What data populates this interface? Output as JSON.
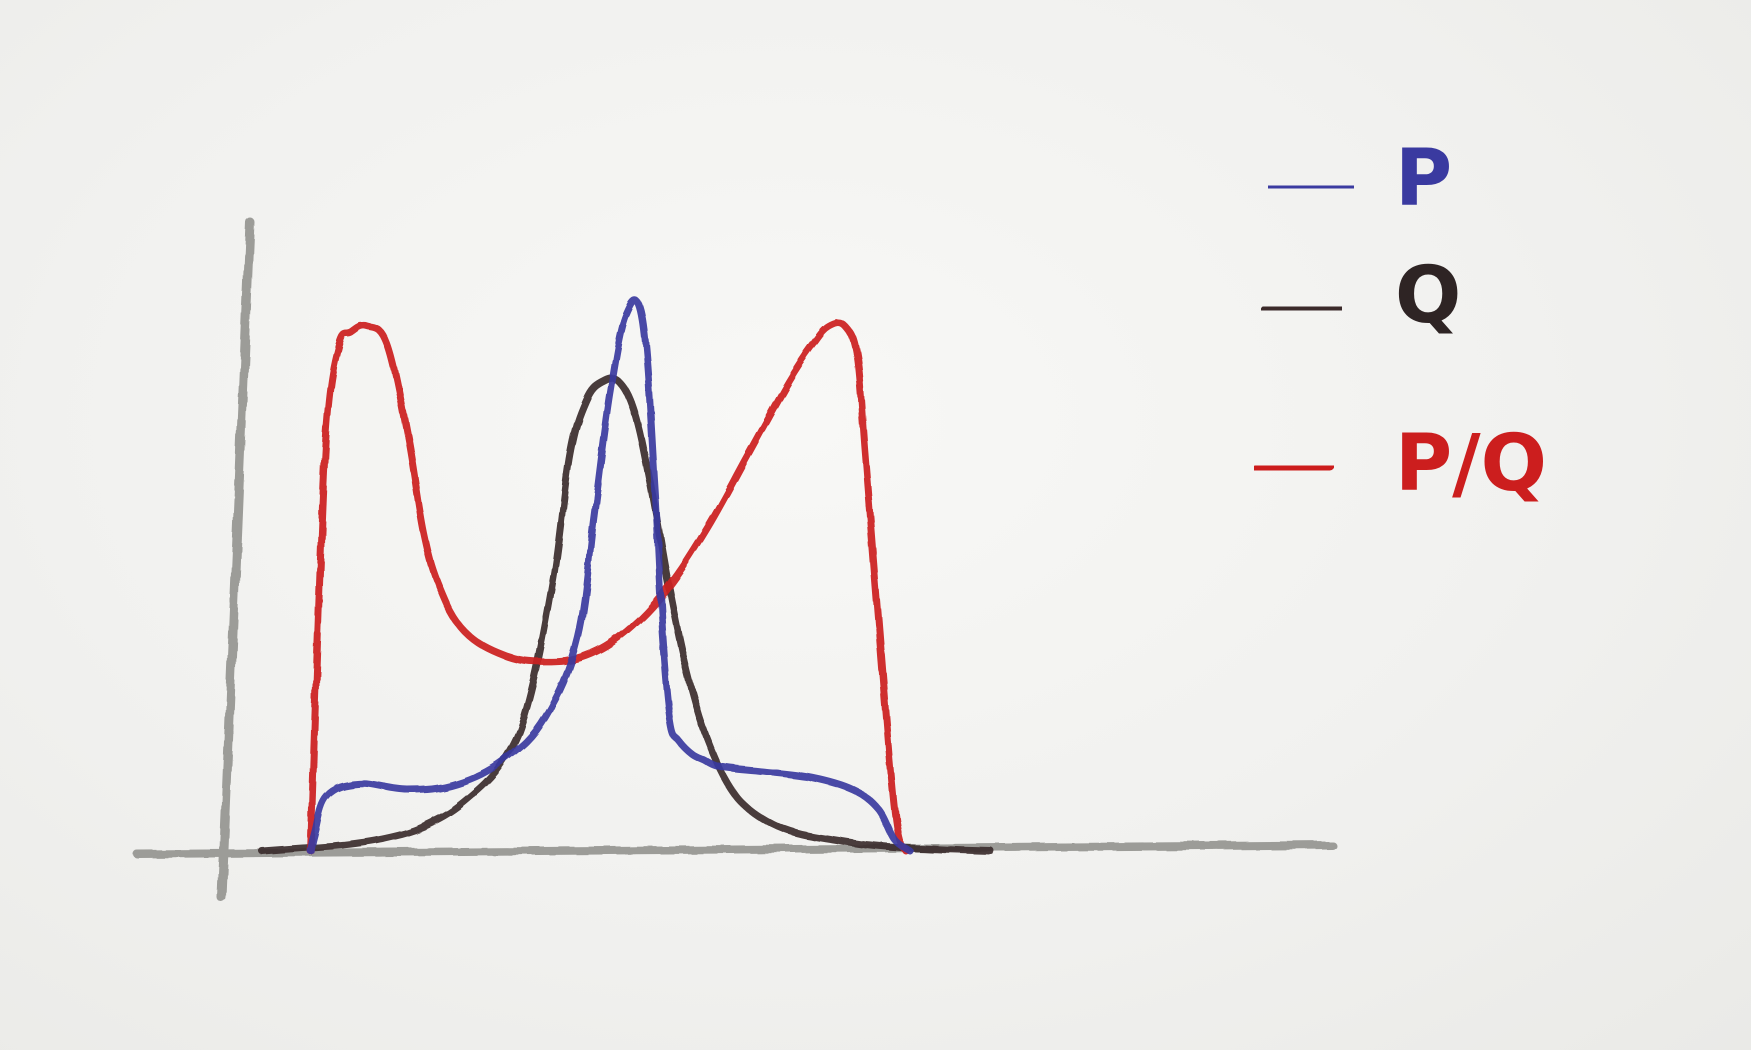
{
  "chart_data": {
    "type": "line",
    "title": "",
    "xlabel": "",
    "ylabel": "",
    "xlim": [
      0,
      10
    ],
    "ylim": [
      0,
      10
    ],
    "grid": false,
    "axes_ticks": false,
    "legend_position": "top-right",
    "series": [
      {
        "name": "P",
        "color": "#3a3aa0",
        "x": [
          0.6,
          0.65,
          0.8,
          1.2,
          1.8,
          2.4,
          3.0,
          3.5,
          3.9,
          4.1,
          4.3,
          4.5,
          4.7,
          4.85,
          4.95,
          5.05,
          5.15,
          5.3,
          5.45,
          5.6,
          5.8,
          6.2,
          6.8,
          7.3,
          7.6,
          7.8,
          8.0
        ],
        "y": [
          0.0,
          0.3,
          0.9,
          1.1,
          1.0,
          1.1,
          1.5,
          2.2,
          3.5,
          5.5,
          7.5,
          8.8,
          8.7,
          6.0,
          3.5,
          2.1,
          1.8,
          1.6,
          1.5,
          1.4,
          1.35,
          1.3,
          1.2,
          1.0,
          0.7,
          0.2,
          0.0
        ]
      },
      {
        "name": "Q",
        "color": "#3a2a2a",
        "x": [
          0.0,
          0.5,
          1.0,
          1.5,
          2.0,
          2.5,
          3.0,
          3.3,
          3.6,
          3.8,
          4.0,
          4.2,
          4.4,
          4.6,
          4.8,
          5.0,
          5.2,
          5.4,
          5.6,
          5.8,
          6.0,
          6.3,
          6.6,
          7.0,
          7.5,
          8.0,
          8.5,
          9.0
        ],
        "y": [
          0.0,
          0.05,
          0.1,
          0.2,
          0.4,
          0.8,
          1.5,
          2.5,
          4.5,
          6.5,
          7.4,
          7.7,
          7.7,
          7.2,
          6.0,
          4.5,
          3.2,
          2.2,
          1.5,
          1.0,
          0.7,
          0.45,
          0.3,
          0.2,
          0.1,
          0.05,
          0.02,
          0.0
        ]
      },
      {
        "name": "P/Q",
        "color": "#cc1e1e",
        "x": [
          0.6,
          0.7,
          0.8,
          0.95,
          1.1,
          1.3,
          1.55,
          1.8,
          2.0,
          2.2,
          2.5,
          3.0,
          3.5,
          4.0,
          4.5,
          5.0,
          5.5,
          6.0,
          6.5,
          6.8,
          7.0,
          7.2,
          7.35,
          7.45,
          7.6,
          7.75,
          7.85,
          7.95
        ],
        "y": [
          0.0,
          4.0,
          7.0,
          8.3,
          8.5,
          8.6,
          8.3,
          6.8,
          5.2,
          4.3,
          3.6,
          3.2,
          3.1,
          3.2,
          3.6,
          4.3,
          5.3,
          6.5,
          7.7,
          8.3,
          8.6,
          8.6,
          8.1,
          6.5,
          4.0,
          1.5,
          0.3,
          0.0
        ]
      }
    ],
    "legend": [
      "P",
      "Q",
      "P/Q"
    ]
  }
}
